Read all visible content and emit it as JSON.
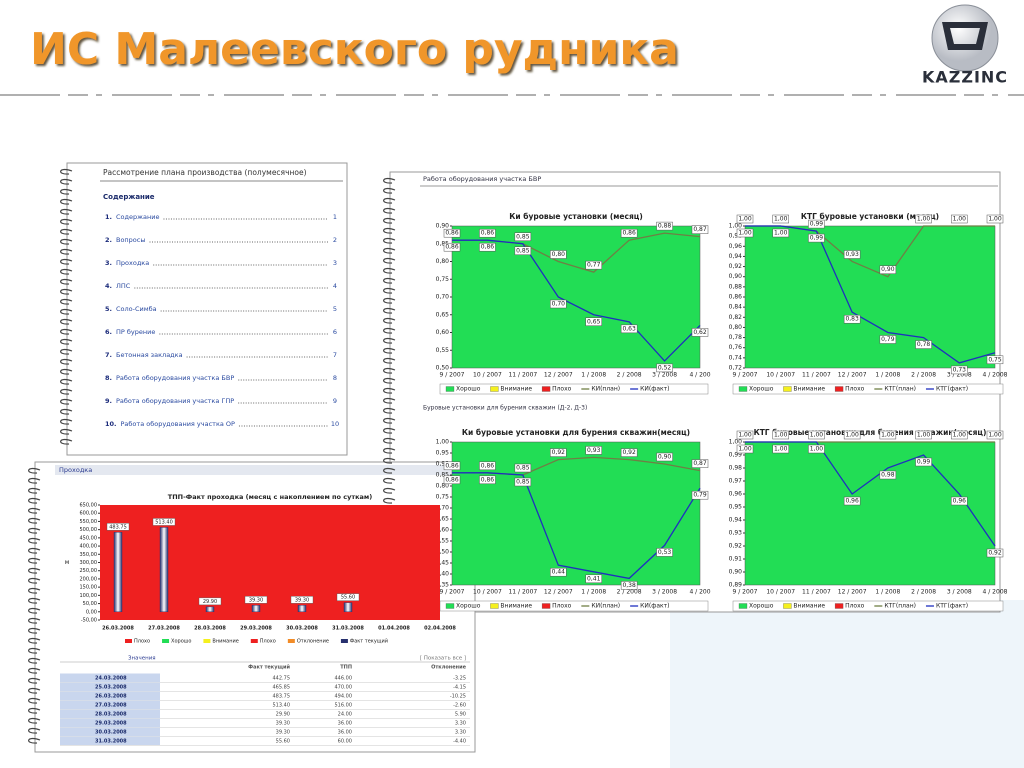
{
  "header": {
    "title": "ИС Малеевского рудника",
    "logo": "KAZZINC"
  },
  "contents": {
    "title": "Рассмотрение плана производства (полумесячное)",
    "heading": "Содержание",
    "items": [
      {
        "number": "1.",
        "text": "Содержание",
        "page": "1"
      },
      {
        "number": "2.",
        "text": "Вопросы",
        "page": "2"
      },
      {
        "number": "3.",
        "text": "Проходка",
        "page": "3"
      },
      {
        "number": "4.",
        "text": "ЛПС",
        "page": "4"
      },
      {
        "number": "5.",
        "text": "Соло-Симба",
        "page": "5"
      },
      {
        "number": "6.",
        "text": "ПР бурение",
        "page": "6"
      },
      {
        "number": "7.",
        "text": "Бетонная закладка",
        "page": "7"
      },
      {
        "number": "8.",
        "text": "Работа оборудования участка БВР",
        "page": "8"
      },
      {
        "number": "9.",
        "text": "Работа оборудования участка ГПР",
        "page": "9"
      },
      {
        "number": "10.",
        "text": "Работа оборудования участка ОР",
        "page": "10"
      }
    ]
  },
  "equipment_panel": {
    "title": "Работа оборудования участка БВР",
    "subtitle": "Буровые установки для бурения скважин (Д-2, Д-3)"
  },
  "chart_data": [
    {
      "type": "line",
      "title": "Ки буровые установки (месяц)",
      "categories": [
        "9 / 2007",
        "10 / 2007",
        "11 / 2007",
        "12 / 2007",
        "1 / 2008",
        "2 / 2008",
        "3 / 2008",
        "4 / 200"
      ],
      "ylim": [
        0.5,
        0.9
      ],
      "yticks": [
        {
          "value": 0.5,
          "label": "0,50"
        },
        {
          "value": 0.55,
          "label": "0,55"
        },
        {
          "value": 0.6,
          "label": "0,60"
        },
        {
          "value": 0.65,
          "label": "0,65"
        },
        {
          "value": 0.7,
          "label": "0,70"
        },
        {
          "value": 0.75,
          "label": "0,75"
        },
        {
          "value": 0.8,
          "label": "0,80"
        },
        {
          "value": 0.85,
          "label": "0,85"
        },
        {
          "value": 0.9,
          "label": "0,90"
        }
      ],
      "bands": [
        {
          "name": "Хорошо",
          "color": "#22dd55"
        },
        {
          "name": "Внимание",
          "color": "#f5f01e",
          "values": [
            0.04,
            0.04,
            0.04,
            0.04,
            0.04,
            0.04,
            0.04,
            0.04
          ]
        },
        {
          "name": "Плохо",
          "color": "#ee2020",
          "values": [
            0.76,
            0.76,
            0.76,
            0.7,
            0.68,
            0.76,
            0.78,
            0.77
          ]
        }
      ],
      "series": [
        {
          "name": "КИ(план)",
          "color": "#6f7f45",
          "values": [
            0.86,
            0.86,
            0.85,
            0.8,
            0.77,
            0.86,
            0.88,
            0.87
          ],
          "value_labels": [
            "0,86",
            "0,86",
            "0,85",
            "0,80",
            "0,77",
            "0,86",
            "0,88",
            "0,87"
          ]
        },
        {
          "name": "КИ(факт)",
          "color": "#1f2fbf",
          "values": [
            0.86,
            0.86,
            0.85,
            0.7,
            0.65,
            0.63,
            0.52,
            0.62
          ],
          "value_labels": [
            "0,86",
            "0,86",
            "0,85",
            "0,70",
            "0,65",
            "0,63",
            "0,52",
            "0,62"
          ]
        }
      ]
    },
    {
      "type": "line",
      "title": "КТГ буровые установки (месяц)",
      "categories": [
        "9 / 2007",
        "10 / 2007",
        "11 / 2007",
        "12 / 2007",
        "1 / 2008",
        "2 / 2008",
        "3 / 2008",
        "4 / 2008"
      ],
      "ylim": [
        0.72,
        1
      ],
      "yticks": [
        {
          "value": 0.72,
          "label": "0,72"
        },
        {
          "value": 0.74,
          "label": "0,74"
        },
        {
          "value": 0.76,
          "label": "0,76"
        },
        {
          "value": 0.78,
          "label": "0,78"
        },
        {
          "value": 0.8,
          "label": "0,80"
        },
        {
          "value": 0.82,
          "label": "0,82"
        },
        {
          "value": 0.84,
          "label": "0,84"
        },
        {
          "value": 0.86,
          "label": "0,86"
        },
        {
          "value": 0.88,
          "label": "0,88"
        },
        {
          "value": 0.9,
          "label": "0,90"
        },
        {
          "value": 0.92,
          "label": "0,92"
        },
        {
          "value": 0.94,
          "label": "0,94"
        },
        {
          "value": 0.96,
          "label": "0,96"
        },
        {
          "value": 0.98,
          "label": "0,98"
        },
        {
          "value": 1,
          "label": "1,00"
        }
      ],
      "bands": [
        {
          "name": "Хорошо",
          "color": "#22dd55"
        },
        {
          "name": "Внимание",
          "color": "#f5f01e",
          "values": [
            0.05,
            0.05,
            0.05,
            0.05,
            0.04,
            0.05,
            0.05,
            0.05
          ]
        },
        {
          "name": "Плохо",
          "color": "#ee2020",
          "values": [
            0.9,
            0.9,
            0.9,
            0.84,
            0.82,
            0.9,
            0.9,
            0.9
          ]
        }
      ],
      "series": [
        {
          "name": "КТГ(план)",
          "color": "#6f7f45",
          "values": [
            1,
            1,
            0.99,
            0.93,
            0.9,
            1,
            1,
            1
          ],
          "value_labels": [
            "1,00",
            "1,00",
            "0,99",
            "0,93",
            "0,90",
            "1,00",
            "1,00",
            "1,00"
          ]
        },
        {
          "name": "КТГ(факт)",
          "color": "#1f2fbf",
          "values": [
            1,
            1,
            0.99,
            0.83,
            0.79,
            0.78,
            0.73,
            0.75
          ],
          "value_labels": [
            "1,00",
            "1,00",
            "0,99",
            "0,83",
            "0,79",
            "0,78",
            "0,73",
            "0,75"
          ]
        }
      ]
    },
    {
      "type": "line",
      "title": "Ки буровые установки для бурения скважин(месяц)",
      "categories": [
        "9 / 2007",
        "10 / 2007",
        "11 / 2007",
        "12 / 2007",
        "1 / 2008",
        "2 / 2008",
        "3 / 2008",
        "4 / 200"
      ],
      "ylim": [
        0.35,
        1
      ],
      "yticks": [
        {
          "value": 0.35,
          "label": "0,35"
        },
        {
          "value": 0.4,
          "label": "0,40"
        },
        {
          "value": 0.45,
          "label": "0,45"
        },
        {
          "value": 0.5,
          "label": "0,50"
        },
        {
          "value": 0.55,
          "label": "0,55"
        },
        {
          "value": 0.6,
          "label": "0,60"
        },
        {
          "value": 0.65,
          "label": "0,65"
        },
        {
          "value": 0.7,
          "label": "0,70"
        },
        {
          "value": 0.75,
          "label": "0,75"
        },
        {
          "value": 0.8,
          "label": "0,80"
        },
        {
          "value": 0.85,
          "label": "0,85"
        },
        {
          "value": 0.9,
          "label": "0,90"
        },
        {
          "value": 0.95,
          "label": "0,95"
        },
        {
          "value": 1,
          "label": "1,00"
        }
      ],
      "bands": [
        {
          "name": "Хорошо",
          "color": "#22dd55"
        },
        {
          "name": "Внимание",
          "color": "#f5f01e",
          "values": [
            0.05,
            0.05,
            0.05,
            0.05,
            0.05,
            0.05,
            0.05,
            0.05
          ]
        },
        {
          "name": "Плохо",
          "color": "#ee2020",
          "values": [
            0.76,
            0.76,
            0.76,
            0.82,
            0.83,
            0.82,
            0.8,
            0.77
          ]
        }
      ],
      "series": [
        {
          "name": "КИ(план)",
          "color": "#6f7f45",
          "values": [
            0.86,
            0.86,
            0.85,
            0.92,
            0.93,
            0.92,
            0.9,
            0.87
          ],
          "value_labels": [
            "0,86",
            "0,86",
            "0,85",
            "0,92",
            "0,93",
            "0,92",
            "0,90",
            "0,87"
          ]
        },
        {
          "name": "КИ(факт)",
          "color": "#1f2fbf",
          "values": [
            0.86,
            0.86,
            0.85,
            0.44,
            0.41,
            0.38,
            0.53,
            0.79
          ],
          "value_labels": [
            "0,86",
            "0,86",
            "0,85",
            "0,44",
            "0,41",
            "0,38",
            "0,53",
            "0,79"
          ]
        }
      ]
    },
    {
      "type": "line",
      "title": "КТГ буровые установки для бурения скважин(месяц)",
      "categories": [
        "9 / 2007",
        "10 / 2007",
        "11 / 2007",
        "12 / 2007",
        "1 / 2008",
        "2 / 2008",
        "3 / 2008",
        "4 / 2008"
      ],
      "ylim": [
        0.89,
        1
      ],
      "yticks": [
        {
          "value": 0.89,
          "label": "0,89"
        },
        {
          "value": 0.9,
          "label": "0,90"
        },
        {
          "value": 0.91,
          "label": "0,91"
        },
        {
          "value": 0.92,
          "label": "0,92"
        },
        {
          "value": 0.93,
          "label": "0,93"
        },
        {
          "value": 0.94,
          "label": "0,94"
        },
        {
          "value": 0.95,
          "label": "0,95"
        },
        {
          "value": 0.96,
          "label": "0,96"
        },
        {
          "value": 0.97,
          "label": "0,97"
        },
        {
          "value": 0.98,
          "label": "0,98"
        },
        {
          "value": 0.99,
          "label": "0,99"
        },
        {
          "value": 1,
          "label": "1,00"
        }
      ],
      "bands": [
        {
          "name": "Хорошо",
          "color": "#22dd55"
        },
        {
          "name": "Внимание",
          "color": "#f5f01e",
          "values": [
            0.05,
            0.05,
            0.05,
            0.05,
            0.05,
            0.05,
            0.05,
            0.05
          ]
        },
        {
          "name": "Плохо",
          "color": "#ee2020",
          "values": [
            0.9,
            0.9,
            0.9,
            0.9,
            0.9,
            0.9,
            0.9,
            0.9
          ]
        }
      ],
      "series": [
        {
          "name": "КТГ(план)",
          "color": "#6f7f45",
          "values": [
            1,
            1,
            1,
            1,
            1,
            1,
            1,
            1
          ],
          "value_labels": [
            "1,00",
            "1,00",
            "1,00",
            "1,00",
            "1,00",
            "1,00",
            "1,00",
            "1,00"
          ]
        },
        {
          "name": "КТГ(факт)",
          "color": "#1f2fbf",
          "values": [
            1,
            1,
            1,
            0.96,
            0.98,
            0.99,
            0.96,
            0.92
          ],
          "value_labels": [
            "1,00",
            "1,00",
            "1,00",
            "0,96",
            "0,98",
            "0,99",
            "0,96",
            "0,92"
          ]
        }
      ]
    },
    {
      "type": "bar",
      "title": "ТПП-Факт проходка (месяц с накоплением по суткам)",
      "ylabel": "м",
      "categories": [
        "26.03.2008",
        "27.03.2008",
        "28.03.2008",
        "29.03.2008",
        "30.03.2008",
        "31.03.2008",
        "01.04.2008",
        "02.04.2008"
      ],
      "ylim": [
        -50,
        650
      ],
      "yticks": [
        {
          "value": -50,
          "label": "-50,00"
        },
        {
          "value": 0,
          "label": "0,00"
        },
        {
          "value": 50,
          "label": "50,00"
        },
        {
          "value": 100,
          "label": "100,00"
        },
        {
          "value": 150,
          "label": "150,00"
        },
        {
          "value": 200,
          "label": "200,00"
        },
        {
          "value": 250,
          "label": "250,00"
        },
        {
          "value": 300,
          "label": "300,00"
        },
        {
          "value": 350,
          "label": "350,00"
        },
        {
          "value": 400,
          "label": "400,00"
        },
        {
          "value": 450,
          "label": "450,00"
        },
        {
          "value": 500,
          "label": "500,00"
        },
        {
          "value": 550,
          "label": "550,00"
        },
        {
          "value": 600,
          "label": "600,00"
        },
        {
          "value": 650,
          "label": "650,00"
        }
      ],
      "background": "#ee2020",
      "legend": [
        {
          "name": "Плохо",
          "color": "#ee2020"
        },
        {
          "name": "Хорошо",
          "color": "#22dd55"
        },
        {
          "name": "Внимание",
          "color": "#f5f01e"
        },
        {
          "name": "Плохо",
          "color": "#ee2020"
        },
        {
          "name": "Отклонение",
          "color": "#f28c28"
        }
      ],
      "series": [
        {
          "name": "Факт текущий",
          "color": "#27306e",
          "values": [
            483.75,
            513.4,
            29.9,
            39.3,
            39.3,
            55.6,
            null,
            null
          ],
          "value_labels": [
            "483.75",
            "513.40",
            "29.90",
            "39.30",
            "39.30",
            "55.60",
            null,
            null
          ]
        }
      ]
    }
  ],
  "progress_panel": {
    "title": "Проходка",
    "table": {
      "caption": "Значения",
      "action": "[ Показать все ]",
      "header": [
        "Факт текущий",
        "ТПП",
        "Отклонение"
      ],
      "rows": [
        [
          "24.03.2008",
          "442.75",
          "446.00",
          "-3.25"
        ],
        [
          "25.03.2008",
          "465.85",
          "470.00",
          "-4.15"
        ],
        [
          "26.03.2008",
          "483.75",
          "494.00",
          "-10.25"
        ],
        [
          "27.03.2008",
          "513.40",
          "516.00",
          "-2.60"
        ],
        [
          "28.03.2008",
          "29.90",
          "24.00",
          "5.90"
        ],
        [
          "29.03.2008",
          "39.30",
          "36.00",
          "3.30"
        ],
        [
          "30.03.2008",
          "39.30",
          "36.00",
          "3.30"
        ],
        [
          "31.03.2008",
          "55.60",
          "60.00",
          "-4.40"
        ]
      ]
    }
  }
}
